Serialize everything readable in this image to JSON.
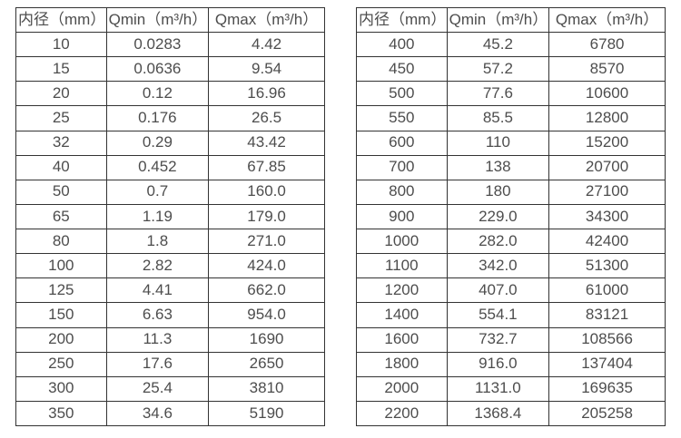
{
  "colors": {
    "background": "#ffffff",
    "border": "#333333",
    "text": "#4d4d4d"
  },
  "tables": [
    {
      "name": "small-diameter-flow-table",
      "headers": [
        "内径（mm）",
        "Qmin（m³/h）",
        "Qmax（m³/h）"
      ],
      "rows": [
        [
          "10",
          "0.0283",
          "4.42"
        ],
        [
          "15",
          "0.0636",
          "9.54"
        ],
        [
          "20",
          "0.12",
          "16.96"
        ],
        [
          "25",
          "0.176",
          "26.5"
        ],
        [
          "32",
          "0.29",
          "43.42"
        ],
        [
          "40",
          "0.452",
          "67.85"
        ],
        [
          "50",
          "0.7",
          "160.0"
        ],
        [
          "65",
          "1.19",
          "179.0"
        ],
        [
          "80",
          "1.8",
          "271.0"
        ],
        [
          "100",
          "2.82",
          "424.0"
        ],
        [
          "125",
          "4.41",
          "662.0"
        ],
        [
          "150",
          "6.63",
          "954.0"
        ],
        [
          "200",
          "11.3",
          "1690"
        ],
        [
          "250",
          "17.6",
          "2650"
        ],
        [
          "300",
          "25.4",
          "3810"
        ],
        [
          "350",
          "34.6",
          "5190"
        ]
      ]
    },
    {
      "name": "large-diameter-flow-table",
      "headers": [
        "内径（mm）",
        "Qmin（m³/h）",
        "Qmax（m³/h）"
      ],
      "rows": [
        [
          "400",
          "45.2",
          "6780"
        ],
        [
          "450",
          "57.2",
          "8570"
        ],
        [
          "500",
          "77.6",
          "10600"
        ],
        [
          "550",
          "85.5",
          "12800"
        ],
        [
          "600",
          "110",
          "15200"
        ],
        [
          "700",
          "138",
          "20700"
        ],
        [
          "800",
          "180",
          "27100"
        ],
        [
          "900",
          "229.0",
          "34300"
        ],
        [
          "1000",
          "282.0",
          "42400"
        ],
        [
          "1100",
          "342.0",
          "51300"
        ],
        [
          "1200",
          "407.0",
          "61000"
        ],
        [
          "1400",
          "554.1",
          "83121"
        ],
        [
          "1600",
          "732.7",
          "108566"
        ],
        [
          "1800",
          "916.0",
          "137404"
        ],
        [
          "2000",
          "1131.0",
          "169635"
        ],
        [
          "2200",
          "1368.4",
          "205258"
        ]
      ]
    }
  ]
}
